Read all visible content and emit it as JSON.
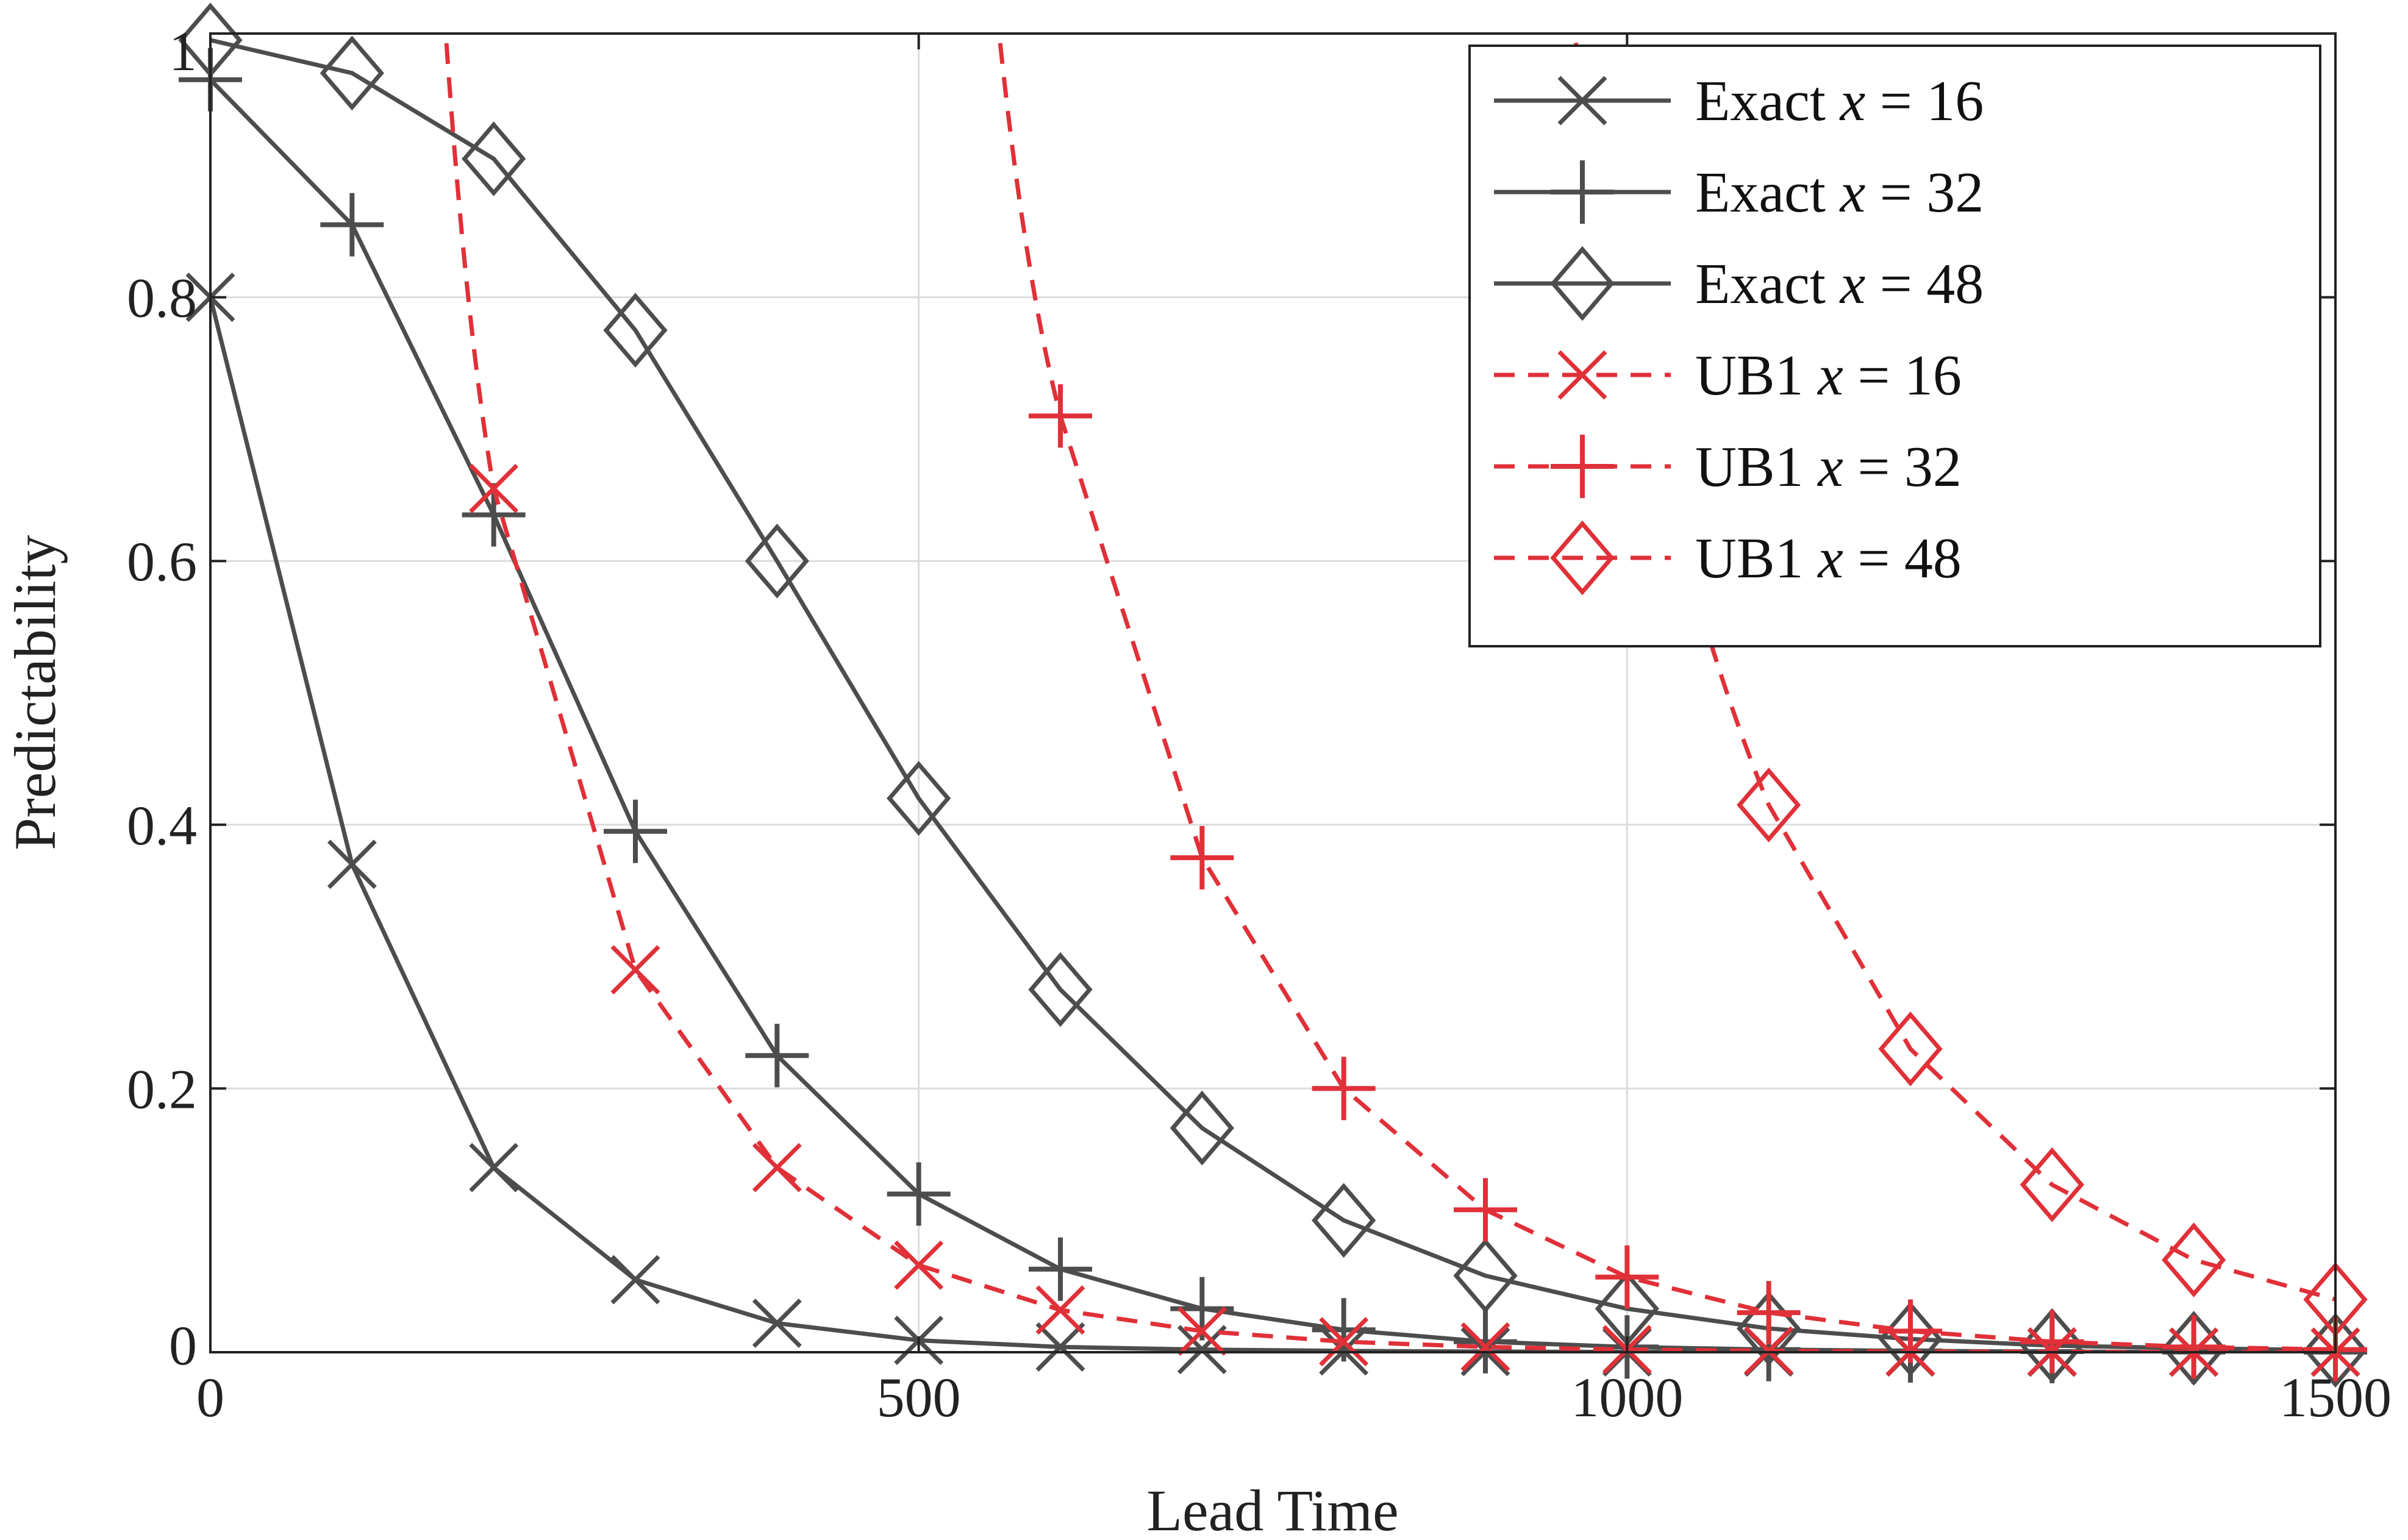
{
  "chart_data": {
    "type": "line",
    "xlabel": "Lead Time",
    "ylabel": "Predictability",
    "xlim": [
      0,
      1500
    ],
    "ylim": [
      0,
      1
    ],
    "x_ticks": [
      0,
      500,
      1000,
      1500
    ],
    "y_ticks": [
      0,
      0.2,
      0.4,
      0.6,
      0.8,
      1
    ],
    "y_tick_labels": [
      "0",
      "0.2",
      "0.4",
      "0.6",
      "0.8",
      "1"
    ],
    "grid": true,
    "legend_position": "top-right",
    "x": [
      0,
      100,
      200,
      300,
      400,
      500,
      600,
      700,
      800,
      900,
      1000,
      1100,
      1200,
      1300,
      1400,
      1500
    ],
    "series": [
      {
        "name": "Exact x = 16",
        "label_prefix": "Exact",
        "label_var": "x",
        "label_eq": "=",
        "label_val": "16",
        "color": "#4d4d4d",
        "dash": "solid",
        "marker": "x",
        "values": [
          0.8,
          0.37,
          0.14,
          0.055,
          0.022,
          0.009,
          0.004,
          0.002,
          0.001,
          0.0005,
          0.0002,
          0.0001,
          0.0001,
          0,
          0,
          0
        ]
      },
      {
        "name": "Exact x = 32",
        "label_prefix": "Exact",
        "label_var": "x",
        "label_eq": "=",
        "label_val": "32",
        "color": "#4d4d4d",
        "dash": "solid",
        "marker": "plus",
        "values": [
          0.965,
          0.855,
          0.635,
          0.395,
          0.225,
          0.12,
          0.063,
          0.033,
          0.017,
          0.008,
          0.004,
          0.002,
          0.001,
          0.0005,
          0.0002,
          0.0001
        ]
      },
      {
        "name": "Exact x = 48",
        "label_prefix": "Exact",
        "label_var": "x",
        "label_eq": "=",
        "label_val": "48",
        "color": "#4d4d4d",
        "dash": "solid",
        "marker": "diamond",
        "values": [
          0.995,
          0.97,
          0.905,
          0.775,
          0.6,
          0.42,
          0.275,
          0.17,
          0.1,
          0.058,
          0.033,
          0.018,
          0.01,
          0.005,
          0.003,
          0.0015
        ]
      },
      {
        "name": "UB1 x = 16",
        "label_prefix": "UB1",
        "label_var": "x",
        "label_eq": "=",
        "label_val": "16",
        "color": "#e03038",
        "dash": "dashed",
        "marker": "x",
        "values": [
          null,
          null,
          0.655,
          0.29,
          0.14,
          0.066,
          0.032,
          0.016,
          0.008,
          0.004,
          0.002,
          0.001,
          0.0005,
          0.0003,
          0.0001,
          0.0001
        ],
        "curve_from_top_x": 165
      },
      {
        "name": "UB1 x = 32",
        "label_prefix": "UB1",
        "label_var": "x",
        "label_eq": "=",
        "label_val": "32",
        "color": "#e03038",
        "dash": "dashed",
        "marker": "plus",
        "values": [
          null,
          null,
          null,
          null,
          null,
          null,
          0.71,
          0.375,
          0.2,
          0.108,
          0.057,
          0.03,
          0.016,
          0.008,
          0.004,
          0.002
        ],
        "curve_from_top_x": 555
      },
      {
        "name": "UB1 x = 48",
        "label_prefix": "UB1",
        "label_var": "x",
        "label_eq": "=",
        "label_val": "48",
        "color": "#e03038",
        "dash": "dashed",
        "marker": "diamond",
        "values": [
          null,
          null,
          null,
          null,
          null,
          null,
          null,
          null,
          null,
          null,
          null,
          0.415,
          0.23,
          0.127,
          0.07,
          0.04
        ],
        "curve_from_top_x": 960
      }
    ]
  }
}
